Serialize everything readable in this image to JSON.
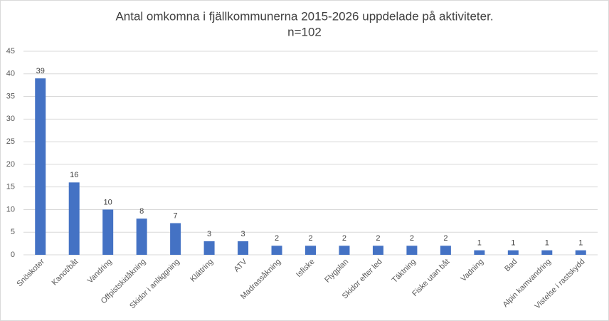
{
  "chart_data": {
    "type": "bar",
    "title": "Antal omkomna i fjällkommunerna 2015-2026 uppdelade på aktiviteter.",
    "subtitle": "n=102",
    "categories": [
      "Snöskoter",
      "Kanot/båt",
      "Vandring",
      "Offpistskidåkning",
      "Skidor i anläggning",
      "Klättring",
      "ATV",
      "Madrassåkning",
      "Isfiske",
      "Flygplan",
      "Skidor efter led",
      "Täktning",
      "Fiske utan båt",
      "Vadning",
      "Bad",
      "Alpin kamvandring",
      "Vistelse i rastskydd"
    ],
    "values": [
      39,
      16,
      10,
      8,
      7,
      3,
      3,
      2,
      2,
      2,
      2,
      2,
      2,
      1,
      1,
      1,
      1
    ],
    "color": "#4472c4",
    "ylim": [
      0,
      45
    ],
    "yticks": [
      0,
      5,
      10,
      15,
      20,
      25,
      30,
      35,
      40,
      45
    ],
    "grid": true
  }
}
